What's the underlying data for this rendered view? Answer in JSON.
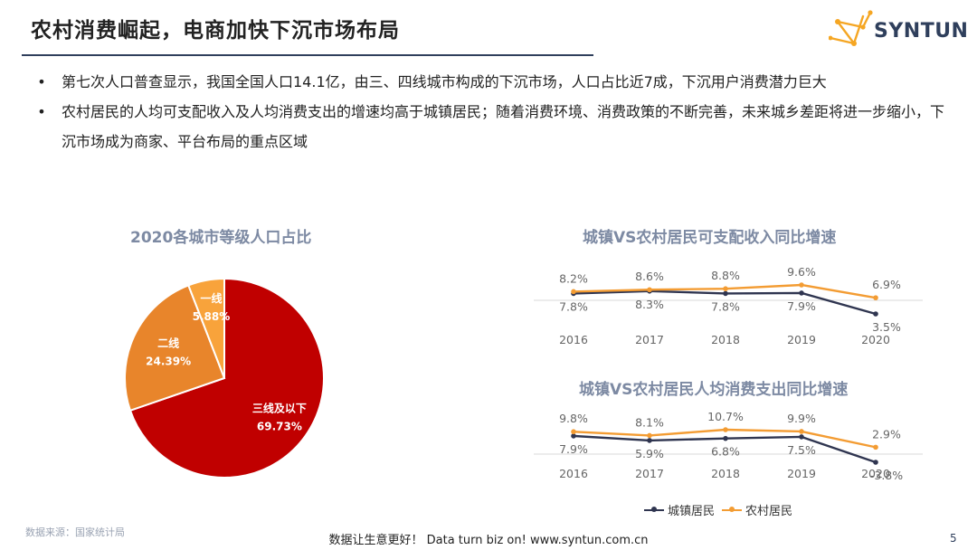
{
  "header": {
    "title": "农村消费崛起，电商加快下沉市场布局",
    "logo_text": "SYNTUN"
  },
  "bullets": [
    "第七次人口普查显示，我国全国人口14.1亿，由三、四线城市构成的下沉市场，人口占比近7成，下沉用户消费潜力巨大",
    "农村居民的人均可支配收入及人均消费支出的增速均高于城镇居民；随着消费环境、消费政策的不断完善，未来城乡差距将进一步缩小，下沉市场成为商家、平台布局的重点区域"
  ],
  "colors": {
    "urban": "#2f3550",
    "rural": "#f39c33",
    "pie_tier3": "#c00000",
    "pie_tier2": "#e8852b",
    "pie_tier1": "#f8a33b",
    "chart_title": "#7d8aa3"
  },
  "chart_data": [
    {
      "type": "pie",
      "title": "2020各城市等级人口占比",
      "slices": [
        {
          "label": "三线及以下",
          "value": 69.73,
          "value_label": "69.73%"
        },
        {
          "label": "二线",
          "value": 24.39,
          "value_label": "24.39%"
        },
        {
          "label": "一线",
          "value": 5.88,
          "value_label": "5.88%"
        }
      ]
    },
    {
      "type": "line",
      "title": "城镇VS农村居民可支配收入同比增速",
      "x": [
        "2016",
        "2017",
        "2018",
        "2019",
        "2020"
      ],
      "series": [
        {
          "name": "城镇居民",
          "values": [
            7.8,
            8.3,
            7.8,
            7.9,
            3.5
          ],
          "labels": [
            "7.8%",
            "8.3%",
            "7.8%",
            "7.9%",
            "3.5%"
          ]
        },
        {
          "name": "农村居民",
          "values": [
            8.2,
            8.6,
            8.8,
            9.6,
            6.9
          ],
          "labels": [
            "8.2%",
            "8.6%",
            "8.8%",
            "9.6%",
            "6.9%"
          ]
        }
      ]
    },
    {
      "type": "line",
      "title": "城镇VS农村居民人均消费支出同比增速",
      "x": [
        "2016",
        "2017",
        "2018",
        "2019",
        "2020"
      ],
      "series": [
        {
          "name": "城镇居民",
          "values": [
            7.9,
            5.9,
            6.8,
            7.5,
            -3.8
          ],
          "labels": [
            "7.9%",
            "5.9%",
            "6.8%",
            "7.5%",
            "-3.8%"
          ]
        },
        {
          "name": "农村居民",
          "values": [
            9.8,
            8.1,
            10.7,
            9.9,
            2.9
          ],
          "labels": [
            "9.8%",
            "8.1%",
            "10.7%",
            "9.9%",
            "2.9%"
          ]
        }
      ]
    }
  ],
  "legend": {
    "urban": "城镇居民",
    "rural": "农村居民"
  },
  "footer": {
    "source": "数据来源：国家统计局",
    "slogan": "数据让生意更好！ Data turn biz on!  www.syntun.com.cn",
    "page": "5"
  }
}
